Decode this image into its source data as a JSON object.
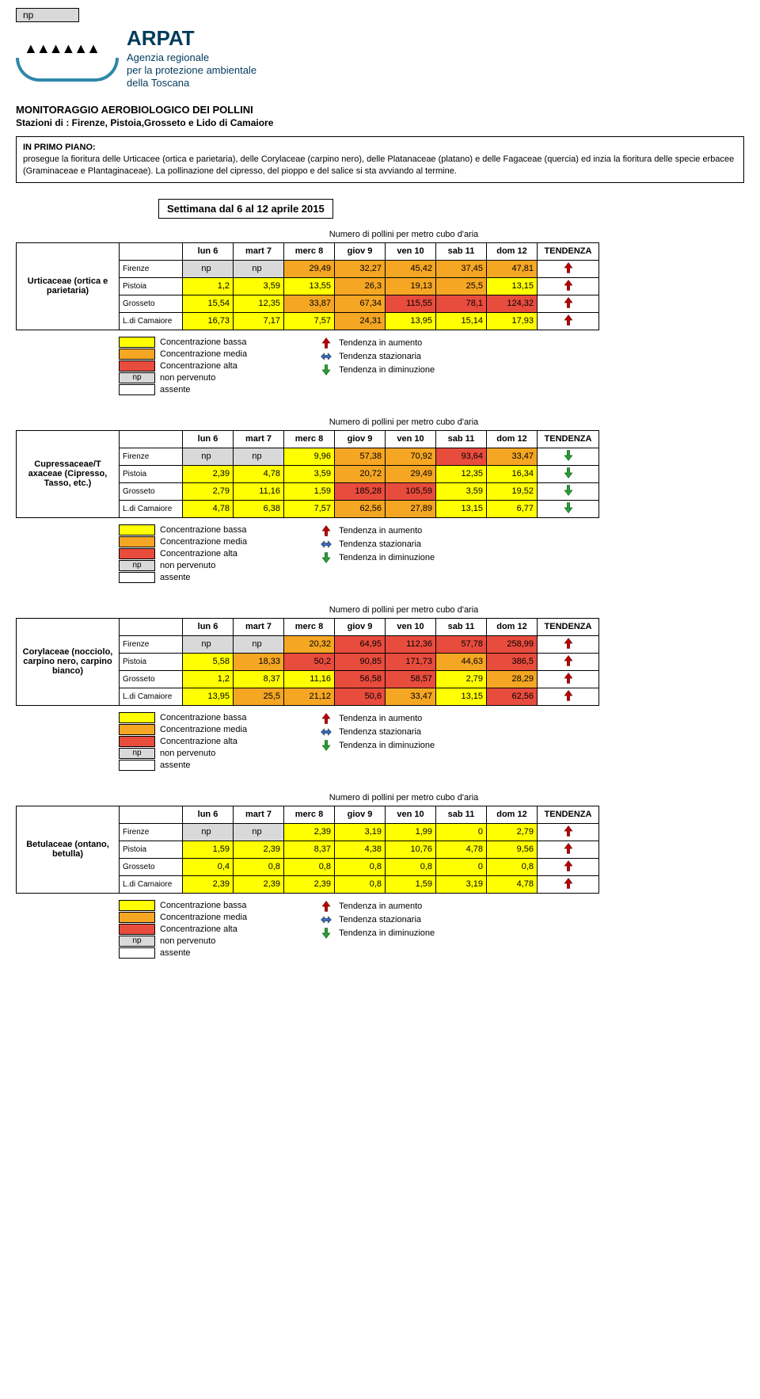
{
  "colors": {
    "low": "#ffff00",
    "med": "#f5a623",
    "high": "#e84c3d",
    "np_bg": "#d9d9d9",
    "arrow_up": "#c00000",
    "arrow_stable": "#3b6fc4",
    "arrow_down": "#2e9b3e"
  },
  "header": {
    "np_label": "np",
    "brand": "ARPAT",
    "brand_sub1": "Agenzia regionale",
    "brand_sub2": "per la protezione ambientale",
    "brand_sub3": "della Toscana",
    "title": "MONITORAGGIO AEROBIOLOGICO DEI POLLINI",
    "subtitle": "Stazioni di : Firenze, Pistoia,Grosseto e Lido di Camaiore"
  },
  "primo": {
    "heading": "IN PRIMO PIANO:",
    "body": "prosegue la fioritura delle Urticacee (ortica e parietaria), delle Corylaceae (carpino nero), delle  Platanaceae (platano) e delle Fagaceae (quercia) ed inzia la fioritura delle  specie erbacee (Graminaceae e Plantaginaceae). La pollinazione del cipresso, del pioppo e del salice si sta avviando al termine."
  },
  "week": "Settimana dal 6 al 12 aprile 2015",
  "table_caption": "Numero di pollini per metro cubo d'aria",
  "columns": [
    "lun 6",
    "mart 7",
    "merc 8",
    "giov 9",
    "ven 10",
    "sab 11",
    "dom 12"
  ],
  "tendenza_label": "TENDENZA",
  "stations": [
    "Firenze",
    "Pistoia",
    "Grosseto",
    "L.di Camaiore"
  ],
  "legend": {
    "low": "Concentrazione bassa",
    "med": "Concentrazione  media",
    "high": "Concentrazione alta",
    "np": "non pervenuto",
    "absent": "assente",
    "up": "Tendenza in aumento",
    "stable": "Tendenza stazionaria",
    "down": "Tendenza in diminuzione"
  },
  "blocks": [
    {
      "species": "Urticaceae (ortica e parietaria)",
      "rows": [
        {
          "cells": [
            {
              "v": "np",
              "c": "np"
            },
            {
              "v": "np",
              "c": "np"
            },
            {
              "v": "29,49",
              "c": "med"
            },
            {
              "v": "32,27",
              "c": "med"
            },
            {
              "v": "45,42",
              "c": "med"
            },
            {
              "v": "37,45",
              "c": "med"
            },
            {
              "v": "47,81",
              "c": "med"
            }
          ],
          "tend": "up"
        },
        {
          "cells": [
            {
              "v": "1,2",
              "c": "low"
            },
            {
              "v": "3,59",
              "c": "low"
            },
            {
              "v": "13,55",
              "c": "low"
            },
            {
              "v": "26,3",
              "c": "med"
            },
            {
              "v": "19,13",
              "c": "med"
            },
            {
              "v": "25,5",
              "c": "med"
            },
            {
              "v": "13,15",
              "c": "low"
            }
          ],
          "tend": "up"
        },
        {
          "cells": [
            {
              "v": "15,54",
              "c": "low"
            },
            {
              "v": "12,35",
              "c": "low"
            },
            {
              "v": "33,87",
              "c": "med"
            },
            {
              "v": "67,34",
              "c": "med"
            },
            {
              "v": "115,55",
              "c": "high"
            },
            {
              "v": "78,1",
              "c": "high"
            },
            {
              "v": "124,32",
              "c": "high"
            }
          ],
          "tend": "up"
        },
        {
          "cells": [
            {
              "v": "16,73",
              "c": "low"
            },
            {
              "v": "7,17",
              "c": "low"
            },
            {
              "v": "7,57",
              "c": "low"
            },
            {
              "v": "24,31",
              "c": "med"
            },
            {
              "v": "13,95",
              "c": "low"
            },
            {
              "v": "15,14",
              "c": "low"
            },
            {
              "v": "17,93",
              "c": "low"
            }
          ],
          "tend": "up"
        }
      ]
    },
    {
      "species": "Cupressaceae/T axaceae (Cipresso, Tasso, etc.)",
      "rows": [
        {
          "cells": [
            {
              "v": "np",
              "c": "np"
            },
            {
              "v": "np",
              "c": "np"
            },
            {
              "v": "9,96",
              "c": "low"
            },
            {
              "v": "57,38",
              "c": "med"
            },
            {
              "v": "70,92",
              "c": "med"
            },
            {
              "v": "93,64",
              "c": "high"
            },
            {
              "v": "33,47",
              "c": "med"
            }
          ],
          "tend": "down"
        },
        {
          "cells": [
            {
              "v": "2,39",
              "c": "low"
            },
            {
              "v": "4,78",
              "c": "low"
            },
            {
              "v": "3,59",
              "c": "low"
            },
            {
              "v": "20,72",
              "c": "med"
            },
            {
              "v": "29,49",
              "c": "med"
            },
            {
              "v": "12,35",
              "c": "low"
            },
            {
              "v": "16,34",
              "c": "low"
            }
          ],
          "tend": "down"
        },
        {
          "cells": [
            {
              "v": "2,79",
              "c": "low"
            },
            {
              "v": "11,16",
              "c": "low"
            },
            {
              "v": "1,59",
              "c": "low"
            },
            {
              "v": "185,28",
              "c": "high"
            },
            {
              "v": "105,59",
              "c": "high"
            },
            {
              "v": "3,59",
              "c": "low"
            },
            {
              "v": "19,52",
              "c": "low"
            }
          ],
          "tend": "down"
        },
        {
          "cells": [
            {
              "v": "4,78",
              "c": "low"
            },
            {
              "v": "6,38",
              "c": "low"
            },
            {
              "v": "7,57",
              "c": "low"
            },
            {
              "v": "62,56",
              "c": "med"
            },
            {
              "v": "27,89",
              "c": "med"
            },
            {
              "v": "13,15",
              "c": "low"
            },
            {
              "v": "6,77",
              "c": "low"
            }
          ],
          "tend": "down"
        }
      ]
    },
    {
      "species": "Corylaceae (nocciolo, carpino nero, carpino bianco)",
      "rows": [
        {
          "cells": [
            {
              "v": "np",
              "c": "np"
            },
            {
              "v": "np",
              "c": "np"
            },
            {
              "v": "20,32",
              "c": "med"
            },
            {
              "v": "64,95",
              "c": "high"
            },
            {
              "v": "112,36",
              "c": "high"
            },
            {
              "v": "57,78",
              "c": "high"
            },
            {
              "v": "258,99",
              "c": "high"
            }
          ],
          "tend": "up"
        },
        {
          "cells": [
            {
              "v": "5,58",
              "c": "low"
            },
            {
              "v": "18,33",
              "c": "med"
            },
            {
              "v": "50,2",
              "c": "high"
            },
            {
              "v": "90,85",
              "c": "high"
            },
            {
              "v": "171,73",
              "c": "high"
            },
            {
              "v": "44,63",
              "c": "med"
            },
            {
              "v": "386,5",
              "c": "high"
            }
          ],
          "tend": "up"
        },
        {
          "cells": [
            {
              "v": "1,2",
              "c": "low"
            },
            {
              "v": "8,37",
              "c": "low"
            },
            {
              "v": "11,16",
              "c": "low"
            },
            {
              "v": "56,58",
              "c": "high"
            },
            {
              "v": "58,57",
              "c": "high"
            },
            {
              "v": "2,79",
              "c": "low"
            },
            {
              "v": "28,29",
              "c": "med"
            }
          ],
          "tend": "up"
        },
        {
          "cells": [
            {
              "v": "13,95",
              "c": "low"
            },
            {
              "v": "25,5",
              "c": "med"
            },
            {
              "v": "21,12",
              "c": "med"
            },
            {
              "v": "50,6",
              "c": "high"
            },
            {
              "v": "33,47",
              "c": "med"
            },
            {
              "v": "13,15",
              "c": "low"
            },
            {
              "v": "62,56",
              "c": "high"
            }
          ],
          "tend": "up"
        }
      ]
    },
    {
      "species": "Betulaceae (ontano, betulla)",
      "rows": [
        {
          "cells": [
            {
              "v": "np",
              "c": "np"
            },
            {
              "v": "np",
              "c": "np"
            },
            {
              "v": "2,39",
              "c": "low"
            },
            {
              "v": "3,19",
              "c": "low"
            },
            {
              "v": "1,99",
              "c": "low"
            },
            {
              "v": "0",
              "c": "low"
            },
            {
              "v": "2,79",
              "c": "low"
            }
          ],
          "tend": "up"
        },
        {
          "cells": [
            {
              "v": "1,59",
              "c": "low"
            },
            {
              "v": "2,39",
              "c": "low"
            },
            {
              "v": "8,37",
              "c": "low"
            },
            {
              "v": "4,38",
              "c": "low"
            },
            {
              "v": "10,76",
              "c": "low"
            },
            {
              "v": "4,78",
              "c": "low"
            },
            {
              "v": "9,56",
              "c": "low"
            }
          ],
          "tend": "up"
        },
        {
          "cells": [
            {
              "v": "0,4",
              "c": "low"
            },
            {
              "v": "0,8",
              "c": "low"
            },
            {
              "v": "0,8",
              "c": "low"
            },
            {
              "v": "0,8",
              "c": "low"
            },
            {
              "v": "0,8",
              "c": "low"
            },
            {
              "v": "0",
              "c": "low"
            },
            {
              "v": "0,8",
              "c": "low"
            }
          ],
          "tend": "up"
        },
        {
          "cells": [
            {
              "v": "2,39",
              "c": "low"
            },
            {
              "v": "2,39",
              "c": "low"
            },
            {
              "v": "2,39",
              "c": "low"
            },
            {
              "v": "0,8",
              "c": "low"
            },
            {
              "v": "1,59",
              "c": "low"
            },
            {
              "v": "3,19",
              "c": "low"
            },
            {
              "v": "4,78",
              "c": "low"
            }
          ],
          "tend": "up"
        }
      ]
    }
  ]
}
